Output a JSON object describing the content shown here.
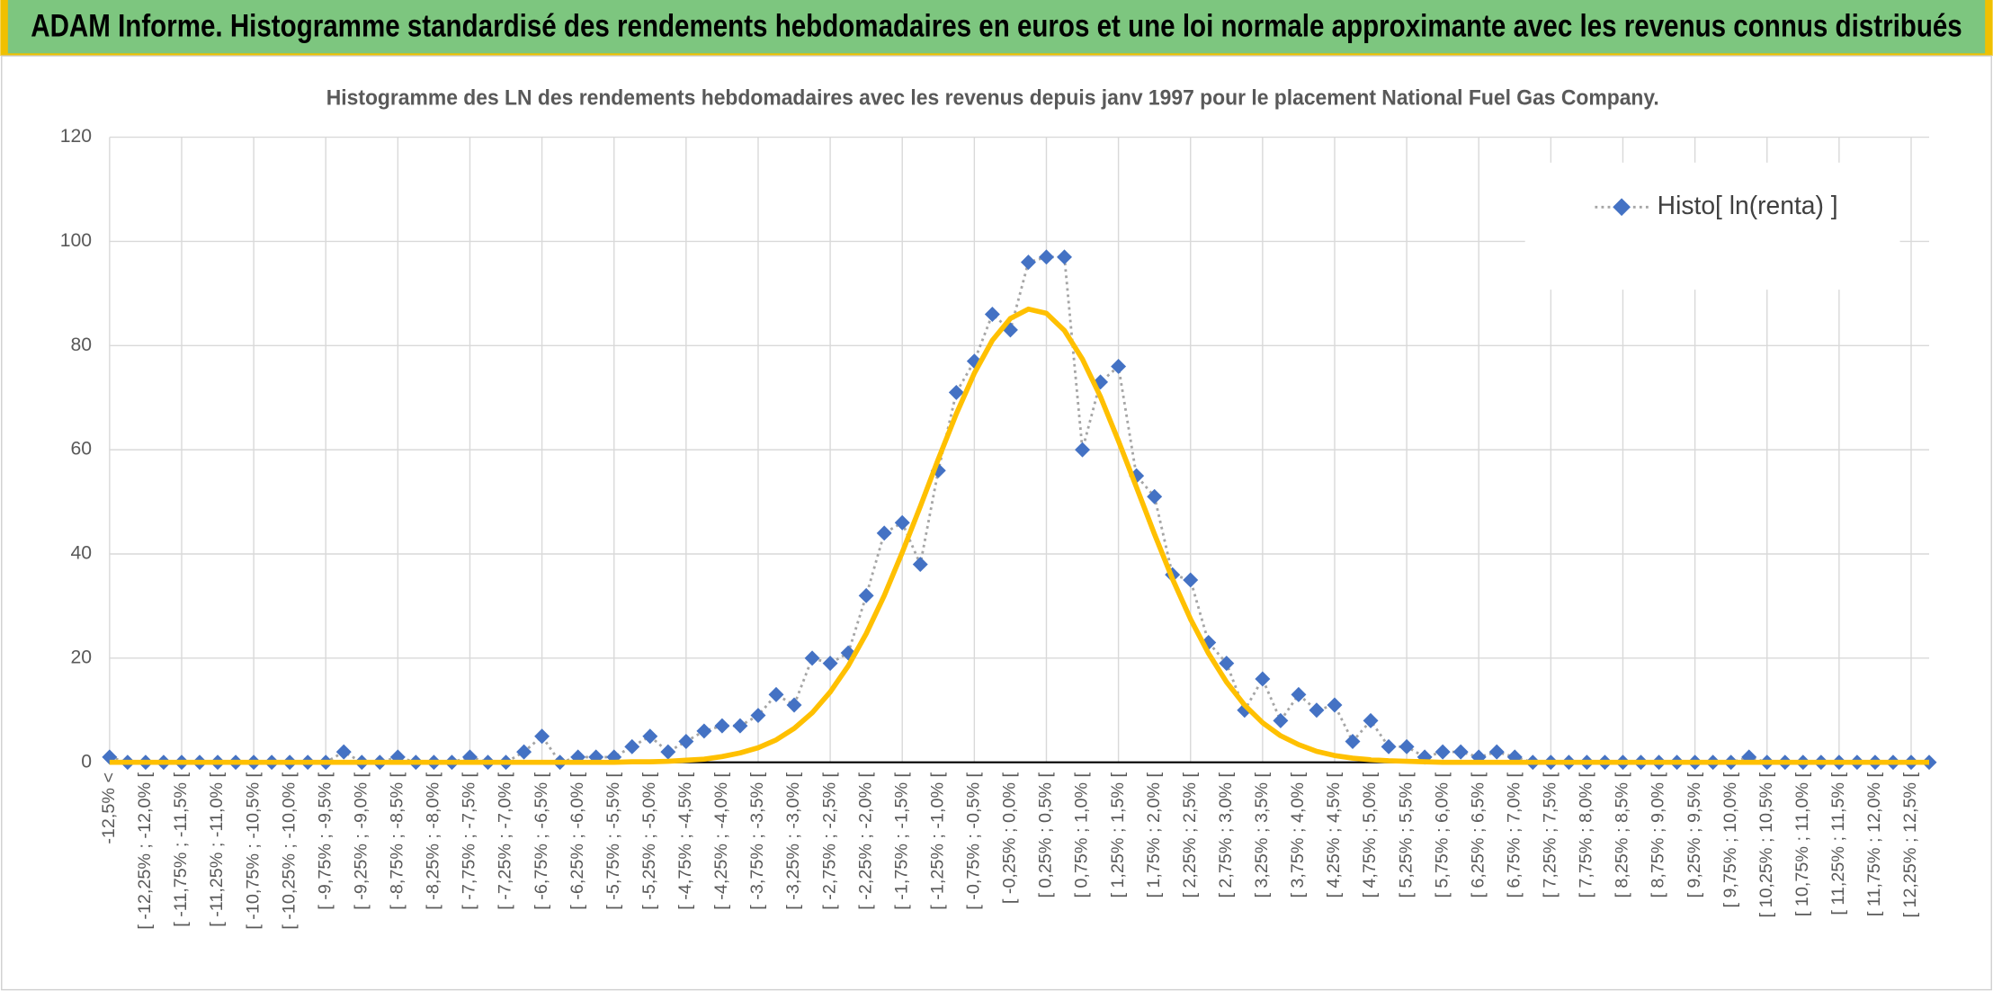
{
  "header": {
    "title": "ADAM Informe. Histogramme standardisé des rendements hebdomadaires en euros et une loi normale approximante avec les revenus connus distribués"
  },
  "chart_data": {
    "type": "line",
    "title": "Histogramme des LN des rendements hebdomadaires avec les revenus depuis janv 1997 pour le placement National Fuel Gas Company.",
    "categories": [
      "-12,5% <",
      null,
      "[ -12,25% ; -12,0% [",
      null,
      "[ -11,75% ; -11,5% [",
      null,
      "[ -11,25% ; -11,0% [",
      null,
      "[ -10,75% ; -10,5% [",
      null,
      "[ -10,25% ; -10,0% [",
      null,
      "[ -9,75% ; -9,5% [",
      null,
      "[ -9,25% ; -9,0% [",
      null,
      "[ -8,75% ; -8,5% [",
      null,
      "[ -8,25% ; -8,0% [",
      null,
      "[ -7,75% ; -7,5% [",
      null,
      "[ -7,25% ; -7,0% [",
      null,
      "[ -6,75% ; -6,5% [",
      null,
      "[ -6,25% ; -6,0% [",
      null,
      "[ -5,75% ; -5,5% [",
      null,
      "[ -5,25% ; -5,0% [",
      null,
      "[ -4,75% ; -4,5% [",
      null,
      "[ -4,25% ; -4,0% [",
      null,
      "[ -3,75% ; -3,5% [",
      null,
      "[ -3,25% ; -3,0% [",
      null,
      "[ -2,75% ; -2,5% [",
      null,
      "[ -2,25% ; -2,0% [",
      null,
      "[ -1,75% ; -1,5% [",
      null,
      "[ -1,25% ; -1,0% [",
      null,
      "[ -0,75% ; -0,5% [",
      null,
      "[ -0,25% ; 0,0% [",
      null,
      "[ 0,25% ; 0,5% [",
      null,
      "[ 0,75% ; 1,0% [",
      null,
      "[ 1,25% ; 1,5% [",
      null,
      "[ 1,75% ; 2,0% [",
      null,
      "[ 2,25% ; 2,5% [",
      null,
      "[ 2,75% ; 3,0% [",
      null,
      "[ 3,25% ; 3,5% [",
      null,
      "[ 3,75% ; 4,0% [",
      null,
      "[ 4,25% ; 4,5% [",
      null,
      "[ 4,75% ; 5,0% [",
      null,
      "[ 5,25% ; 5,5% [",
      null,
      "[ 5,75% ; 6,0% [",
      null,
      "[ 6,25% ; 6,5% [",
      null,
      "[ 6,75% ; 7,0% [",
      null,
      "[ 7,25% ; 7,5% [",
      null,
      "[ 7,75% ; 8,0% [",
      null,
      "[ 8,25% ; 8,5% [",
      null,
      "[ 8,75% ; 9,0% [",
      null,
      "[ 9,25% ; 9,5% [",
      null,
      "[ 9,75% ; 10,0% [",
      null,
      "[ 10,25% ; 10,5% [",
      null,
      "[ 10,75% ; 11,0% [",
      null,
      "[ 11,25% ; 11,5% [",
      null,
      "[ 11,75% ; 12,0% [",
      null,
      "[ 12,25% ; 12,5% [",
      null
    ],
    "series": [
      {
        "name": "Histo[ ln(renta) ]",
        "color": "#4472c4",
        "line_color": "#a5a5a5",
        "values": [
          1,
          0,
          0,
          0,
          0,
          0,
          0,
          0,
          0,
          0,
          0,
          0,
          0,
          2,
          0,
          0,
          1,
          0,
          0,
          0,
          1,
          0,
          0,
          2,
          5,
          0,
          1,
          1,
          1,
          3,
          5,
          2,
          4,
          6,
          7,
          7,
          9,
          13,
          11,
          20,
          19,
          21,
          32,
          44,
          46,
          38,
          56,
          71,
          77,
          86,
          83,
          96,
          97,
          97,
          60,
          73,
          76,
          55,
          51,
          36,
          35,
          23,
          19,
          10,
          16,
          8,
          13,
          10,
          11,
          4,
          8,
          3,
          3,
          1,
          2,
          2,
          1,
          2,
          1,
          0,
          0,
          0,
          0,
          0,
          0,
          0,
          0,
          0,
          0,
          0,
          0,
          1,
          0,
          0,
          0,
          0,
          0,
          0,
          0,
          0,
          0,
          0
        ]
      },
      {
        "color": "#ffc000",
        "values": [
          0,
          0,
          0,
          0,
          0,
          0,
          0,
          0,
          0,
          0,
          0,
          0,
          0,
          0,
          0,
          0,
          0,
          0,
          0,
          0,
          0,
          0,
          0,
          0,
          0,
          0,
          0,
          0,
          0,
          0.1,
          0.1,
          0.2,
          0.4,
          0.6,
          1.1,
          1.8,
          2.8,
          4.3,
          6.5,
          9.5,
          13.5,
          18.5,
          24.7,
          32.0,
          40.3,
          49.1,
          58.2,
          66.9,
          74.7,
          81.0,
          85.2,
          87.0,
          86.2,
          82.9,
          77.4,
          70.2,
          61.7,
          52.8,
          43.8,
          35.2,
          27.5,
          20.9,
          15.4,
          11.0,
          7.6,
          5.1,
          3.4,
          2.1,
          1.3,
          0.8,
          0.5,
          0.3,
          0.2,
          0.1,
          0,
          0,
          0,
          0,
          0,
          0,
          0,
          0,
          0,
          0,
          0,
          0,
          0,
          0,
          0,
          0,
          0,
          0,
          0,
          0,
          0,
          0,
          0,
          0,
          0,
          0,
          0,
          0
        ]
      }
    ],
    "ylim": [
      0,
      120
    ],
    "yticks": [
      0,
      20,
      40,
      60,
      80,
      100,
      120
    ],
    "grid": true,
    "legend": "top-right"
  }
}
